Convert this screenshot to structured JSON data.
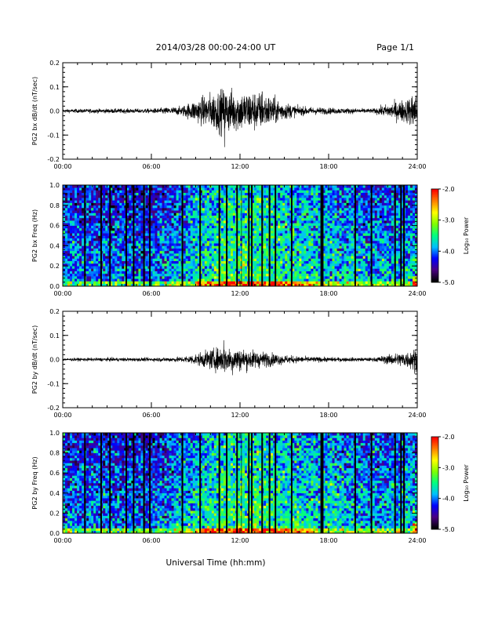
{
  "header": {
    "title": "2014/03/28  00:00-24:00 UT",
    "page": "Page 1/1"
  },
  "colors": {
    "trace": "#000000",
    "colormap": [
      "#000000",
      "#4b0082",
      "#0000ff",
      "#00bfff",
      "#00ff80",
      "#7fff00",
      "#ffff00",
      "#ff8000",
      "#ff0000"
    ]
  },
  "chart_data": [
    {
      "type": "line",
      "ylabel": "PG2 bx dB/dt (nT/sec)",
      "x_ticks": [
        "00:00",
        "06:00",
        "12:00",
        "18:00",
        "24:00"
      ],
      "xlim": [
        0,
        24
      ],
      "ylim": [
        -0.2,
        0.2
      ],
      "y_ticks": [
        "-0.2",
        "-0.1",
        "0.0",
        "0.1",
        "0.2"
      ],
      "x_hours": [
        0,
        3,
        6,
        8,
        9,
        10,
        11,
        12,
        13,
        14,
        15,
        16,
        18,
        21,
        23.5,
        23.8,
        24
      ],
      "amplitude": [
        0.004,
        0.005,
        0.005,
        0.01,
        0.025,
        0.04,
        0.05,
        0.045,
        0.045,
        0.035,
        0.02,
        0.01,
        0.007,
        0.005,
        0.03,
        0.05,
        0.03
      ],
      "min_value": -0.15,
      "min_at_hour": 10.95,
      "max_value": 0.08,
      "max_at_hour": 13.5
    },
    {
      "type": "heatmap",
      "ylabel": "PG2 bx Freq (Hz)",
      "x_ticks": [
        "00:00",
        "06:00",
        "12:00",
        "18:00",
        "24:00"
      ],
      "xlim": [
        0,
        24
      ],
      "ylim": [
        0,
        1
      ],
      "y_ticks": [
        "0.0",
        "0.2",
        "0.4",
        "0.6",
        "0.8",
        "1.0"
      ],
      "colorbar_label": "Log₁₀ Power",
      "colorbar_ticks": [
        "-2.0",
        "-3.0",
        "-4.0",
        "-5.0"
      ],
      "color_range": [
        -5.0,
        -2.0
      ],
      "gap_lines_hours": [
        1.5,
        2.6,
        3.2,
        4.3,
        4.8,
        5.5,
        5.9,
        8.1,
        9.3,
        10.6,
        11.1,
        11.8,
        12.6,
        12.8,
        13.5,
        14.0,
        14.4,
        15.5,
        17.5,
        17.6,
        19.8,
        20.9,
        22.5,
        22.9,
        23.1
      ],
      "thin_lines_hours": [
        8.1,
        9.3,
        11.1,
        12.1,
        14.4
      ]
    },
    {
      "type": "line",
      "ylabel": "PG2 by dB/dt (nT/sec)",
      "x_ticks": [
        "00:00",
        "06:00",
        "12:00",
        "18:00",
        "24:00"
      ],
      "xlim": [
        0,
        24
      ],
      "ylim": [
        -0.2,
        0.2
      ],
      "y_ticks": [
        "-0.2",
        "-0.1",
        "0.0",
        "0.1",
        "0.2"
      ],
      "x_hours": [
        0,
        3,
        6,
        8,
        9,
        10,
        11,
        12,
        13,
        14,
        15,
        16,
        18,
        21,
        23.5,
        23.8,
        24
      ],
      "amplitude": [
        0.003,
        0.004,
        0.004,
        0.006,
        0.012,
        0.022,
        0.03,
        0.025,
        0.02,
        0.015,
        0.01,
        0.007,
        0.005,
        0.004,
        0.02,
        0.03,
        0.02
      ],
      "min_value": -0.065,
      "min_at_hour": 11.5,
      "max_value": 0.08,
      "max_at_hour": 10.9
    },
    {
      "type": "heatmap",
      "ylabel": "PG2 by Freq (Hz)",
      "x_ticks": [
        "00:00",
        "06:00",
        "12:00",
        "18:00",
        "24:00"
      ],
      "xlim": [
        0,
        24
      ],
      "ylim": [
        0,
        1
      ],
      "y_ticks": [
        "0.0",
        "0.2",
        "0.4",
        "0.6",
        "0.8",
        "1.0"
      ],
      "colorbar_label": "Log₁₀ Power",
      "colorbar_ticks": [
        "-2.0",
        "-3.0",
        "-4.0",
        "-5.0"
      ],
      "color_range": [
        -5.0,
        -2.0
      ],
      "gap_lines_hours": [
        1.5,
        2.6,
        3.2,
        4.3,
        4.8,
        5.5,
        5.9,
        8.1,
        9.3,
        10.6,
        11.1,
        11.8,
        12.6,
        12.8,
        13.5,
        14.0,
        14.4,
        15.5,
        17.5,
        17.6,
        19.8,
        20.9,
        22.5,
        22.9,
        23.1
      ],
      "thin_lines_hours": [
        8.1,
        9.3,
        11.1,
        12.1,
        14.4
      ]
    }
  ],
  "xaxis_label": "Universal Time (hh:mm)"
}
